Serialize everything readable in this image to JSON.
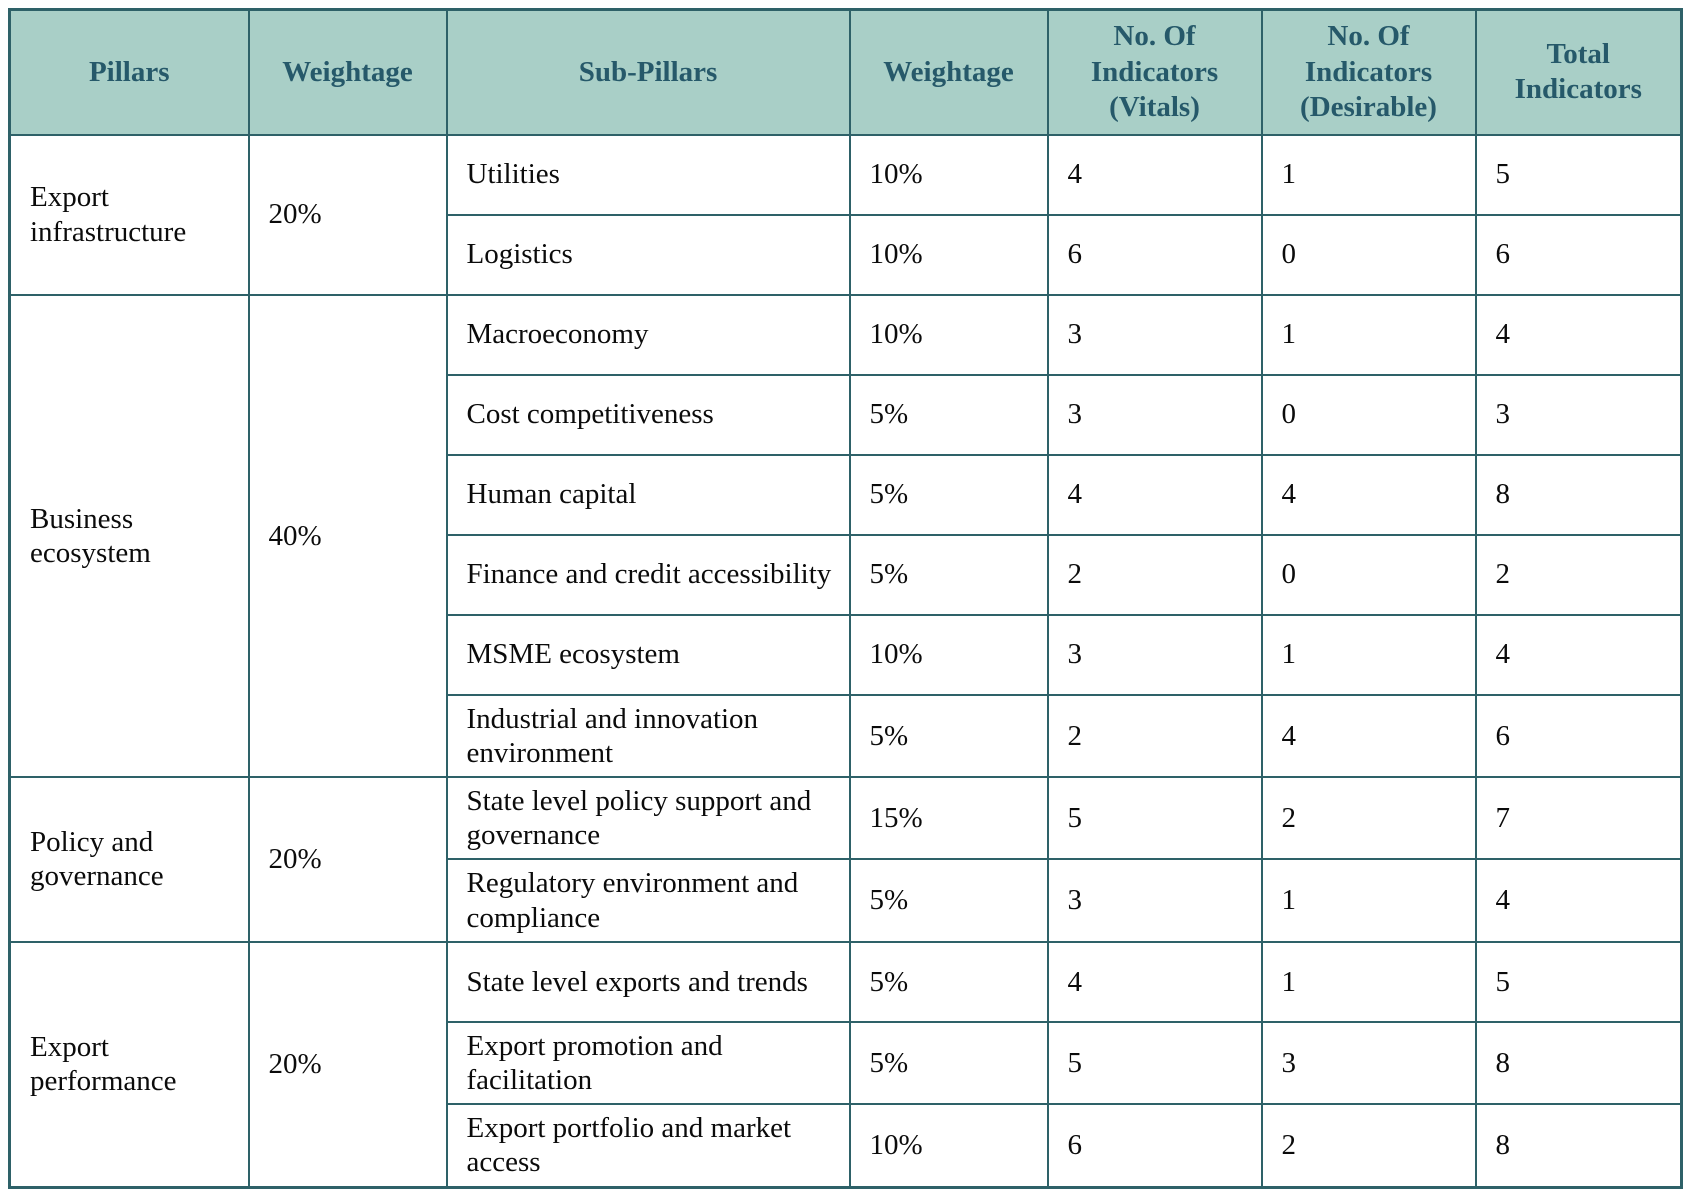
{
  "colors": {
    "border": "#2e6168",
    "header_bg": "#a9cfc7",
    "header_text": "#26596a",
    "body_text": "#0b0b0b",
    "page_bg": "#ffffff"
  },
  "table": {
    "headers": [
      "Pillars",
      "Weightage",
      "Sub-Pillars",
      "Weightage",
      "No. Of Indicators (Vitals)",
      "No. Of Indicators (Desirable)",
      "Total Indicators"
    ],
    "pillars": [
      {
        "name": "Export infrastructure",
        "weightage": "20%",
        "sub_pillars": [
          {
            "name": "Utilities",
            "weightage": "10%",
            "vitals": "4",
            "desirable": "1",
            "total": "5"
          },
          {
            "name": "Logistics",
            "weightage": "10%",
            "vitals": "6",
            "desirable": "0",
            "total": "6"
          }
        ]
      },
      {
        "name": "Business ecosystem",
        "weightage": "40%",
        "sub_pillars": [
          {
            "name": "Macroeconomy",
            "weightage": "10%",
            "vitals": "3",
            "desirable": "1",
            "total": "4"
          },
          {
            "name": "Cost competitiveness",
            "weightage": "5%",
            "vitals": "3",
            "desirable": "0",
            "total": "3"
          },
          {
            "name": "Human capital",
            "weightage": "5%",
            "vitals": "4",
            "desirable": "4",
            "total": "8"
          },
          {
            "name": "Finance and credit accessibility",
            "weightage": "5%",
            "vitals": "2",
            "desirable": "0",
            "total": "2"
          },
          {
            "name": "MSME ecosystem",
            "weightage": "10%",
            "vitals": "3",
            "desirable": "1",
            "total": "4"
          },
          {
            "name": "Industrial and innovation environment",
            "weightage": "5%",
            "vitals": "2",
            "desirable": "4",
            "total": "6"
          }
        ]
      },
      {
        "name": "Policy and governance",
        "weightage": "20%",
        "sub_pillars": [
          {
            "name": "State level policy support and governance",
            "weightage": "15%",
            "vitals": "5",
            "desirable": "2",
            "total": "7"
          },
          {
            "name": "Regulatory environment and compliance",
            "weightage": "5%",
            "vitals": "3",
            "desirable": "1",
            "total": "4"
          }
        ]
      },
      {
        "name": "Export performance",
        "weightage": "20%",
        "sub_pillars": [
          {
            "name": "State level exports and trends",
            "weightage": "5%",
            "vitals": "4",
            "desirable": "1",
            "total": "5"
          },
          {
            "name": "Export promotion and facilitation",
            "weightage": "5%",
            "vitals": "5",
            "desirable": "3",
            "total": "8"
          },
          {
            "name": "Export portfolio and market access",
            "weightage": "10%",
            "vitals": "6",
            "desirable": "2",
            "total": "8"
          }
        ]
      }
    ]
  }
}
